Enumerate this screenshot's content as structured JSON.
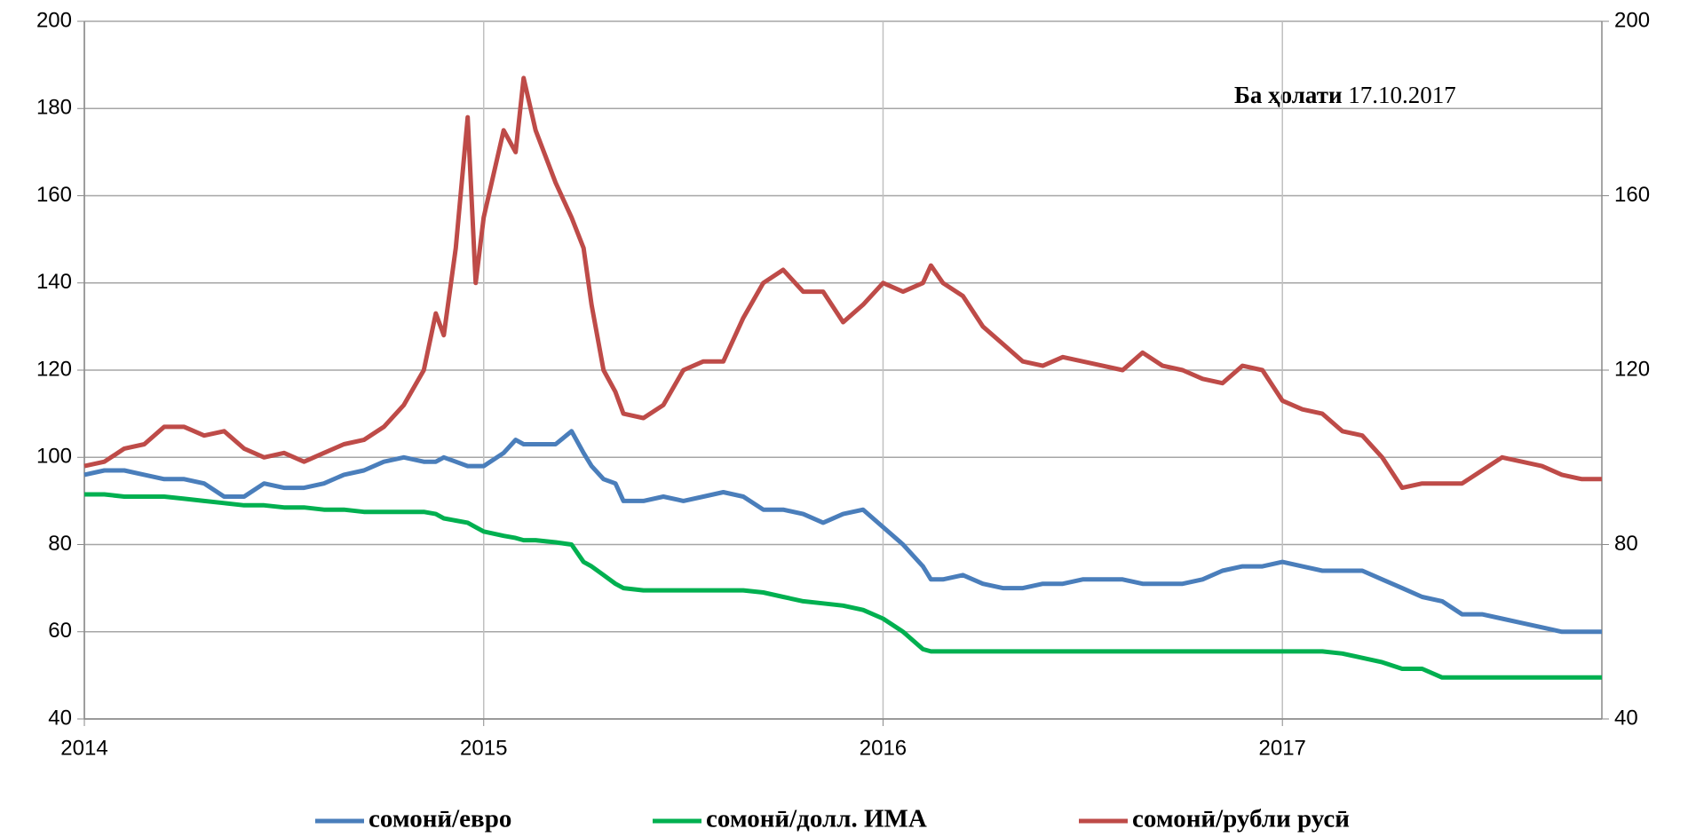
{
  "chart_data": {
    "type": "line",
    "annotation": [
      "Ба ҳолати",
      "17.10.2017"
    ],
    "x": [
      2014,
      2014.05,
      2014.1,
      2014.15,
      2014.2,
      2014.25,
      2014.3,
      2014.35,
      2014.4,
      2014.45,
      2014.5,
      2014.55,
      2014.6,
      2014.65,
      2014.7,
      2014.75,
      2014.8,
      2014.85,
      2014.88,
      2014.9,
      2014.93,
      2014.96,
      2014.98,
      2015,
      2015.05,
      2015.08,
      2015.1,
      2015.13,
      2015.18,
      2015.22,
      2015.25,
      2015.27,
      2015.3,
      2015.33,
      2015.35,
      2015.4,
      2015.45,
      2015.5,
      2015.55,
      2015.6,
      2015.65,
      2015.7,
      2015.75,
      2015.8,
      2015.85,
      2015.9,
      2015.95,
      2016,
      2016.05,
      2016.1,
      2016.12,
      2016.15,
      2016.2,
      2016.25,
      2016.3,
      2016.35,
      2016.4,
      2016.45,
      2016.5,
      2016.55,
      2016.6,
      2016.65,
      2016.7,
      2016.75,
      2016.8,
      2016.85,
      2016.9,
      2016.95,
      2017,
      2017.05,
      2017.1,
      2017.15,
      2017.2,
      2017.25,
      2017.3,
      2017.35,
      2017.4,
      2017.45,
      2017.5,
      2017.55,
      2017.6,
      2017.65,
      2017.7,
      2017.75,
      2017.8
    ],
    "series": [
      {
        "name": "сомонӣ/евро",
        "color": "#4a7ebb",
        "values": [
          96,
          97,
          97,
          96,
          95,
          95,
          94,
          91,
          91,
          94,
          93,
          93,
          94,
          96,
          97,
          99,
          100,
          99,
          99,
          100,
          99,
          98,
          98,
          98,
          101,
          104,
          103,
          103,
          103,
          106,
          101,
          98,
          95,
          94,
          90,
          90,
          91,
          90,
          91,
          92,
          91,
          88,
          88,
          87,
          85,
          87,
          88,
          84,
          80,
          75,
          72,
          72,
          73,
          71,
          70,
          70,
          71,
          71,
          72,
          72,
          72,
          71,
          71,
          71,
          72,
          74,
          75,
          75,
          76,
          75,
          74,
          74,
          74,
          72,
          70,
          68,
          67,
          64,
          64,
          63,
          62,
          61,
          60,
          60,
          60
        ]
      },
      {
        "name": "сомонӣ/долл. ИМА",
        "color": "#00b050",
        "values": [
          91.5,
          91.5,
          91,
          91,
          91,
          90.5,
          90,
          89.5,
          89,
          89,
          88.5,
          88.5,
          88,
          88,
          87.5,
          87.5,
          87.5,
          87.5,
          87,
          86,
          85.5,
          85,
          84,
          83,
          82,
          81.5,
          81,
          81,
          80.5,
          80,
          76,
          75,
          73,
          71,
          70,
          69.5,
          69.5,
          69.5,
          69.5,
          69.5,
          69.5,
          69,
          68,
          67,
          66.5,
          66,
          65,
          63,
          60,
          56,
          55.5,
          55.5,
          55.5,
          55.5,
          55.5,
          55.5,
          55.5,
          55.5,
          55.5,
          55.5,
          55.5,
          55.5,
          55.5,
          55.5,
          55.5,
          55.5,
          55.5,
          55.5,
          55.5,
          55.5,
          55.5,
          55,
          54,
          53,
          51.5,
          51.5,
          49.5,
          49.5,
          49.5,
          49.5,
          49.5,
          49.5,
          49.5,
          49.5,
          49.5
        ]
      },
      {
        "name": "сомонӣ/рубли русӣ",
        "color": "#be4b48",
        "values": [
          98,
          99,
          102,
          103,
          107,
          107,
          105,
          106,
          102,
          100,
          101,
          99,
          101,
          103,
          104,
          107,
          112,
          120,
          133,
          128,
          148,
          178,
          140,
          155,
          175,
          170,
          187,
          175,
          163,
          155,
          148,
          135,
          120,
          115,
          110,
          109,
          112,
          120,
          122,
          122,
          132,
          140,
          143,
          138,
          138,
          131,
          135,
          140,
          138,
          140,
          144,
          140,
          137,
          130,
          126,
          122,
          121,
          123,
          122,
          121,
          120,
          124,
          121,
          120,
          118,
          117,
          121,
          120,
          113,
          111,
          110,
          106,
          105,
          100,
          93,
          94,
          94,
          94,
          97,
          100,
          99,
          98,
          96,
          95,
          95
        ]
      }
    ],
    "xlim": [
      2014,
      2017.8
    ],
    "xticks": [
      2014,
      2015,
      2016,
      2017
    ],
    "ylim": [
      40,
      200
    ],
    "yticks": [
      40,
      60,
      80,
      100,
      120,
      140,
      160,
      180,
      200
    ],
    "y2lim": [
      40,
      200
    ],
    "y2ticks": [
      40,
      80,
      120,
      160,
      200
    ],
    "grid": true,
    "legend": "bottom"
  }
}
